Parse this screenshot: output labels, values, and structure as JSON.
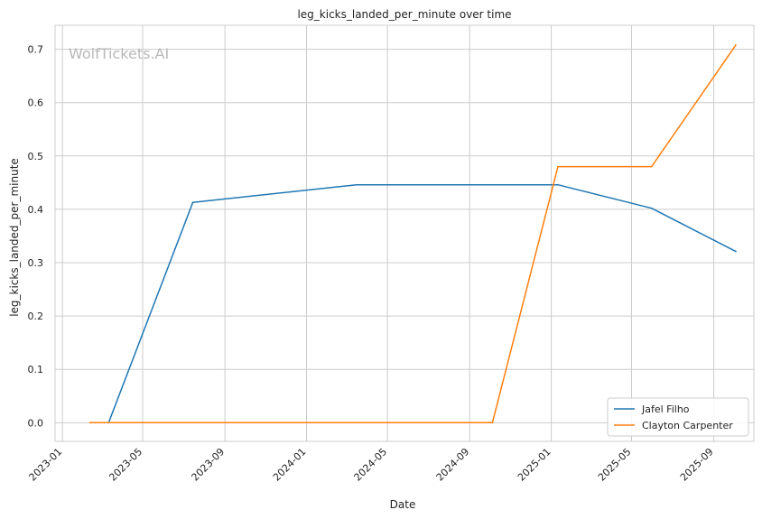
{
  "watermark": "WolfTickets.AI",
  "chart_data": {
    "type": "line",
    "title": "leg_kicks_landed_per_minute over time",
    "xlabel": "Date",
    "ylabel": "leg_kicks_landed_per_minute",
    "xlim": [
      "2022-12-21",
      "2025-10-31"
    ],
    "ylim": [
      -0.035,
      0.745
    ],
    "xticks": [
      "2023-01",
      "2023-05",
      "2023-09",
      "2024-01",
      "2024-05",
      "2024-09",
      "2025-01",
      "2025-05",
      "2025-09"
    ],
    "yticks": [
      "0.0",
      "0.1",
      "0.2",
      "0.3",
      "0.4",
      "0.5",
      "0.6",
      "0.7"
    ],
    "grid": true,
    "legend_position": "bottom-right",
    "series": [
      {
        "name": "Jafel Filho",
        "color": "#1f77b4",
        "points": [
          {
            "x": "2023-03-11",
            "y": 0.0
          },
          {
            "x": "2023-07-15",
            "y": 0.413
          },
          {
            "x": "2024-03-16",
            "y": 0.446
          },
          {
            "x": "2025-01-11",
            "y": 0.446
          },
          {
            "x": "2025-05-31",
            "y": 0.402
          },
          {
            "x": "2025-10-04",
            "y": 0.321
          }
        ]
      },
      {
        "name": "Clayton Carpenter",
        "color": "#ff7f0e",
        "points": [
          {
            "x": "2023-02-11",
            "y": 0.0
          },
          {
            "x": "2024-10-05",
            "y": 0.0
          },
          {
            "x": "2025-01-11",
            "y": 0.48
          },
          {
            "x": "2025-05-31",
            "y": 0.48
          },
          {
            "x": "2025-10-04",
            "y": 0.708
          }
        ]
      }
    ]
  }
}
